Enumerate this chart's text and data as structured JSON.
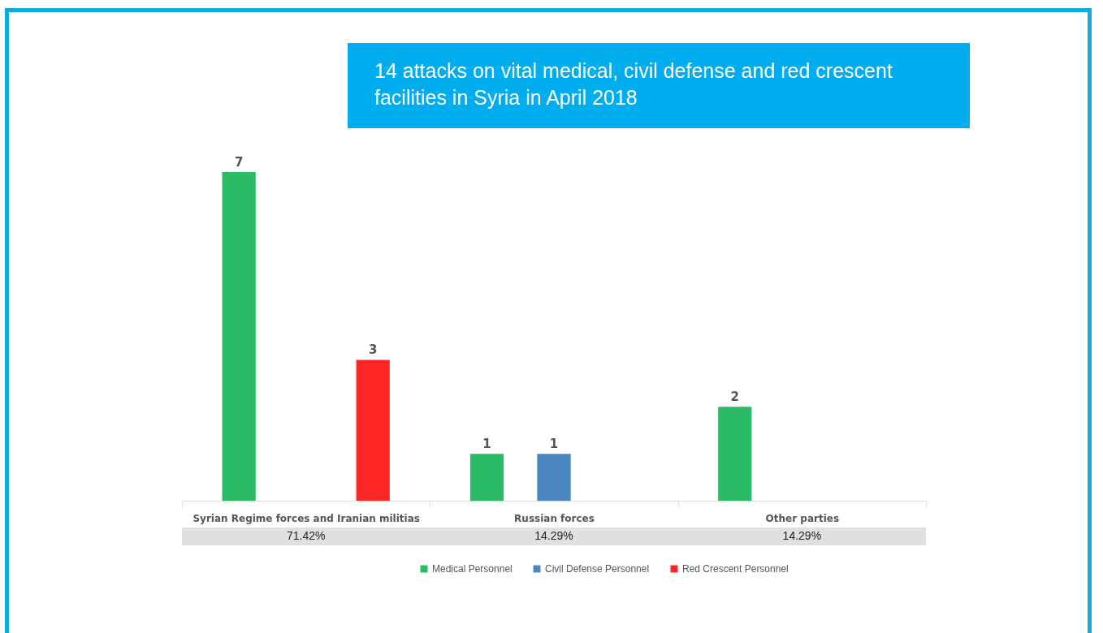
{
  "chart_data": {
    "type": "bar",
    "title": "14 attacks on vital medical, civil defense and red crescent facilities in Syria in April 2018",
    "categories": [
      "Syrian Regime forces and Iranian militias",
      "Russian forces",
      "Other parties"
    ],
    "series": [
      {
        "name": "Medical Personnel",
        "color": "#2bbb67",
        "values": [
          7,
          1,
          2
        ]
      },
      {
        "name": "Civil Defense Personnel",
        "color": "#4a86c0",
        "values": [
          null,
          1,
          null
        ]
      },
      {
        "name": "Red Crescent Personnel",
        "color": "#fc2626",
        "values": [
          3,
          null,
          null
        ]
      }
    ],
    "data_labels": true,
    "legend": "bottom",
    "tick_labels": "x",
    "annotations": [
      "71.42%",
      "14.29%",
      "14.29%"
    ]
  }
}
